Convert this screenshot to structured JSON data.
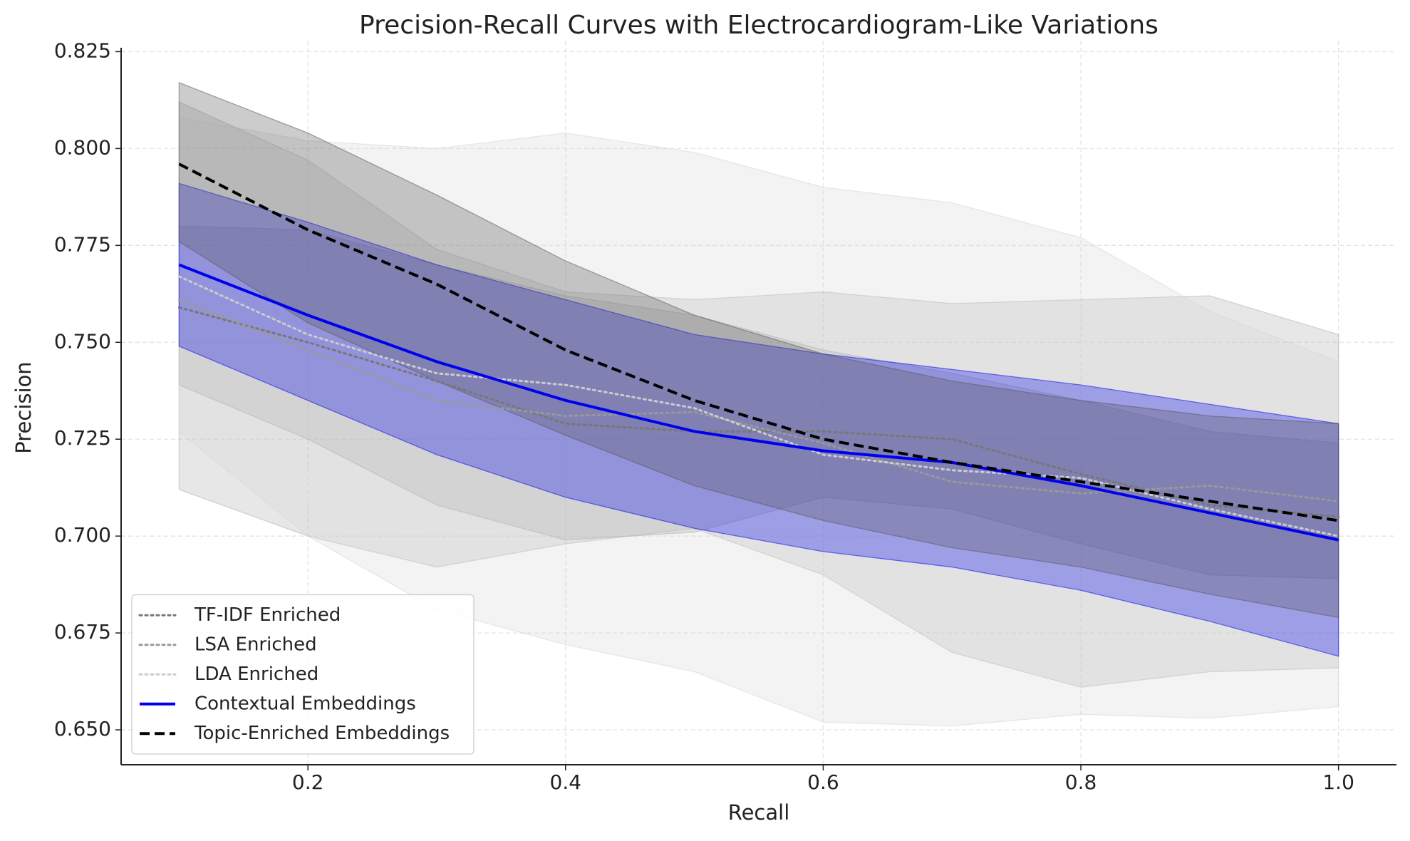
{
  "chart_data": {
    "type": "line",
    "title": "Precision-Recall Curves with Electrocardiogram-Like Variations",
    "x_label": "Recall",
    "y_label": "Precision",
    "x": [
      0.1,
      0.2,
      0.3,
      0.4,
      0.5,
      0.6,
      0.7,
      0.8,
      0.9,
      1.0
    ],
    "series": [
      {
        "name": "TF-IDF Enriched",
        "color": "#777777",
        "line_style": "dotted",
        "band_color": "#999999",
        "values": [
          0.759,
          0.75,
          0.74,
          0.729,
          0.727,
          0.727,
          0.725,
          0.716,
          0.708,
          0.705
        ],
        "upper": [
          0.78,
          0.779,
          0.77,
          0.762,
          0.757,
          0.748,
          0.742,
          0.735,
          0.727,
          0.724
        ],
        "lower": [
          0.739,
          0.725,
          0.708,
          0.699,
          0.701,
          0.71,
          0.707,
          0.698,
          0.69,
          0.689
        ]
      },
      {
        "name": "LSA Enriched",
        "color": "#999999",
        "line_style": "dotted",
        "band_color": "#b0b0b0",
        "values": [
          0.761,
          0.748,
          0.735,
          0.731,
          0.732,
          0.724,
          0.714,
          0.711,
          0.713,
          0.709
        ],
        "upper": [
          0.812,
          0.797,
          0.774,
          0.763,
          0.761,
          0.763,
          0.76,
          0.761,
          0.762,
          0.752
        ],
        "lower": [
          0.712,
          0.7,
          0.692,
          0.698,
          0.702,
          0.69,
          0.67,
          0.661,
          0.665,
          0.666
        ]
      },
      {
        "name": "LDA Enriched",
        "color": "#cccccc",
        "line_style": "dotted",
        "band_color": "#d6d6d6",
        "values": [
          0.767,
          0.752,
          0.742,
          0.739,
          0.733,
          0.721,
          0.717,
          0.715,
          0.707,
          0.7
        ],
        "upper": [
          0.808,
          0.802,
          0.8,
          0.804,
          0.799,
          0.79,
          0.786,
          0.777,
          0.758,
          0.745
        ],
        "lower": [
          0.727,
          0.7,
          0.681,
          0.672,
          0.665,
          0.652,
          0.651,
          0.654,
          0.653,
          0.656
        ]
      },
      {
        "name": "Contextual Embeddings",
        "color": "#0000ee",
        "line_style": "solid",
        "band_color": "#0000ee",
        "values": [
          0.77,
          0.757,
          0.745,
          0.735,
          0.727,
          0.722,
          0.719,
          0.713,
          0.706,
          0.699
        ],
        "upper": [
          0.791,
          0.781,
          0.77,
          0.761,
          0.752,
          0.747,
          0.743,
          0.739,
          0.734,
          0.729
        ],
        "lower": [
          0.749,
          0.735,
          0.721,
          0.71,
          0.702,
          0.696,
          0.692,
          0.686,
          0.678,
          0.669
        ]
      },
      {
        "name": "Topic-Enriched Embeddings",
        "color": "#000000",
        "line_style": "dashed",
        "band_color": "#555555",
        "values": [
          0.796,
          0.779,
          0.765,
          0.748,
          0.735,
          0.725,
          0.719,
          0.714,
          0.709,
          0.704
        ],
        "upper": [
          0.817,
          0.804,
          0.788,
          0.771,
          0.757,
          0.747,
          0.74,
          0.735,
          0.731,
          0.729
        ],
        "lower": [
          0.776,
          0.755,
          0.74,
          0.726,
          0.713,
          0.704,
          0.697,
          0.692,
          0.685,
          0.679
        ]
      }
    ],
    "band_opacity": 0.3,
    "xlim": [
      0.055,
      1.045
    ],
    "xticks": [
      0.2,
      0.4,
      0.6,
      0.8,
      {
        "value": 1.0,
        "label": "1.0"
      }
    ],
    "ylim": [
      0.641,
      0.826
    ],
    "yticks": [
      {
        "value": 0.65,
        "label": "0.650"
      },
      0.675,
      {
        "value": 0.7,
        "label": "0.700"
      },
      {
        "value": 0.725,
        "label": "0.725"
      },
      {
        "value": 0.75,
        "label": "0.750"
      },
      0.775,
      {
        "value": 0.8,
        "label": "0.800"
      },
      0.825
    ],
    "grid": true,
    "legend_loc": "lower left"
  }
}
